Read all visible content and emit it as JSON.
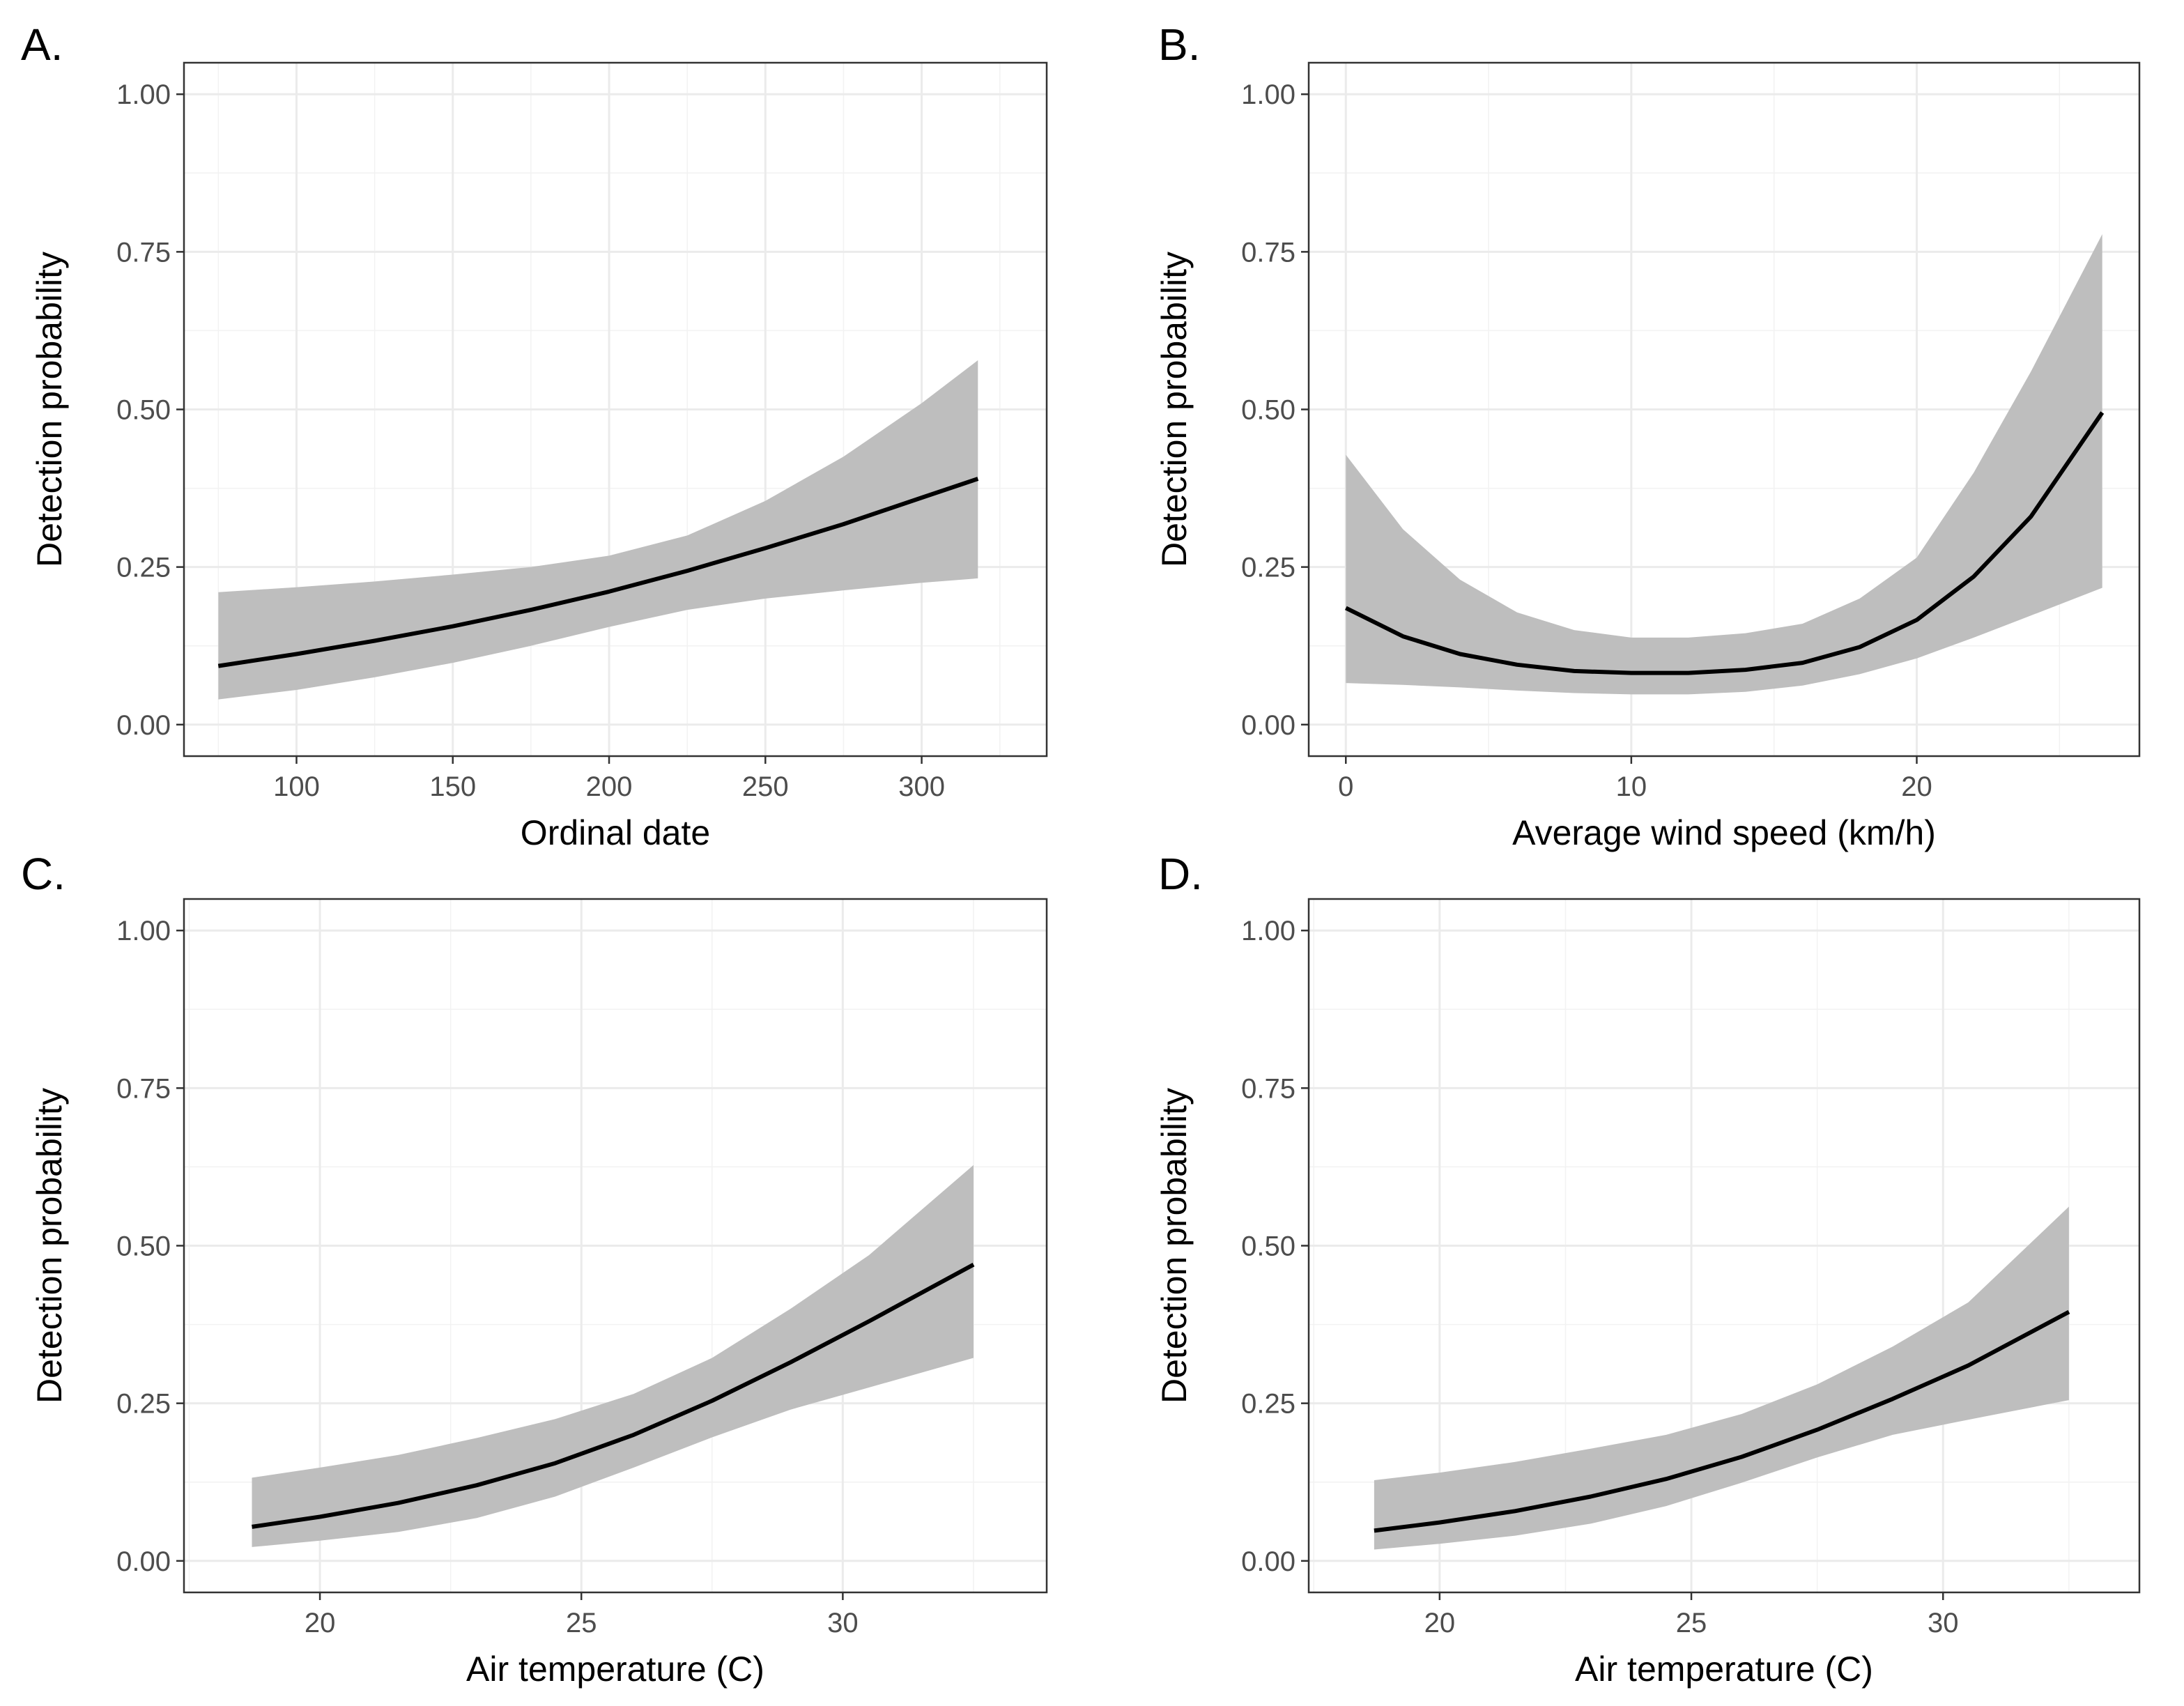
{
  "colors": {
    "ribbon": "#bebebe",
    "line": "#000000",
    "grid": "#ebebeb",
    "border": "#333333",
    "tick_text": "#4d4d4d"
  },
  "chart_data": [
    {
      "panel": "A.",
      "type": "line",
      "xlabel": "Ordinal date",
      "ylabel": "Detection probability",
      "xlim": [
        64,
        340
      ],
      "ylim": [
        -0.05,
        1.05
      ],
      "x_major_ticks": [
        100,
        150,
        200,
        250,
        300
      ],
      "x_tick_labels": [
        "100",
        "150",
        "200",
        "250",
        "300"
      ],
      "y_major_ticks": [
        0,
        0.25,
        0.5,
        0.75,
        1.0
      ],
      "y_tick_labels": [
        "0.00",
        "0.25",
        "0.50",
        "0.75",
        "1.00"
      ],
      "x": [
        75,
        100,
        125,
        150,
        175,
        200,
        225,
        250,
        275,
        300,
        318
      ],
      "y": [
        0.093,
        0.112,
        0.133,
        0.156,
        0.182,
        0.211,
        0.244,
        0.28,
        0.318,
        0.36,
        0.39
      ],
      "lower": [
        0.04,
        0.055,
        0.075,
        0.098,
        0.125,
        0.155,
        0.182,
        0.2,
        0.213,
        0.225,
        0.232
      ],
      "upper": [
        0.21,
        0.218,
        0.227,
        0.238,
        0.25,
        0.268,
        0.3,
        0.355,
        0.425,
        0.51,
        0.578
      ]
    },
    {
      "panel": "B.",
      "type": "line",
      "xlabel": "Average wind speed (km/h)",
      "ylabel": "Detection probability",
      "xlim": [
        -1.3,
        27.8
      ],
      "ylim": [
        -0.05,
        1.05
      ],
      "x_major_ticks": [
        0,
        10,
        20
      ],
      "x_tick_labels": [
        "0",
        "10",
        "20"
      ],
      "y_major_ticks": [
        0,
        0.25,
        0.5,
        0.75,
        1.0
      ],
      "y_tick_labels": [
        "0.00",
        "0.25",
        "0.50",
        "0.75",
        "1.00"
      ],
      "x": [
        0,
        2,
        4,
        6,
        8,
        10,
        12,
        14,
        16,
        18,
        20,
        22,
        24,
        26.5
      ],
      "y": [
        0.185,
        0.14,
        0.112,
        0.095,
        0.085,
        0.082,
        0.082,
        0.087,
        0.098,
        0.123,
        0.166,
        0.235,
        0.33,
        0.495
      ],
      "lower": [
        0.066,
        0.063,
        0.059,
        0.054,
        0.05,
        0.048,
        0.048,
        0.052,
        0.062,
        0.08,
        0.105,
        0.138,
        0.173,
        0.217
      ],
      "upper": [
        0.428,
        0.31,
        0.23,
        0.178,
        0.15,
        0.138,
        0.138,
        0.145,
        0.16,
        0.2,
        0.265,
        0.4,
        0.56,
        0.778
      ]
    },
    {
      "panel": "C.",
      "type": "line",
      "xlabel": "Air temperature (C)",
      "ylabel": "Detection probability",
      "xlim": [
        17.4,
        33.9
      ],
      "ylim": [
        -0.05,
        1.05
      ],
      "x_major_ticks": [
        20,
        25,
        30
      ],
      "x_tick_labels": [
        "20",
        "25",
        "30"
      ],
      "y_major_ticks": [
        0,
        0.25,
        0.5,
        0.75,
        1.0
      ],
      "y_tick_labels": [
        "0.00",
        "0.25",
        "0.50",
        "0.75",
        "1.00"
      ],
      "x": [
        18.7,
        20,
        21.5,
        23,
        24.5,
        26,
        27.5,
        29,
        30.5,
        32.5
      ],
      "y": [
        0.054,
        0.07,
        0.092,
        0.12,
        0.155,
        0.2,
        0.254,
        0.315,
        0.38,
        0.47
      ],
      "lower": [
        0.022,
        0.032,
        0.046,
        0.068,
        0.102,
        0.148,
        0.196,
        0.24,
        0.275,
        0.322
      ],
      "upper": [
        0.132,
        0.148,
        0.168,
        0.195,
        0.225,
        0.265,
        0.322,
        0.4,
        0.485,
        0.628
      ]
    },
    {
      "panel": "D.",
      "type": "line",
      "xlabel": "Air temperature (C)",
      "ylabel": "Detection probability",
      "xlim": [
        17.4,
        33.9
      ],
      "ylim": [
        -0.05,
        1.05
      ],
      "x_major_ticks": [
        20,
        25,
        30
      ],
      "x_tick_labels": [
        "20",
        "25",
        "30"
      ],
      "y_major_ticks": [
        0,
        0.25,
        0.5,
        0.75,
        1.0
      ],
      "y_tick_labels": [
        "0.00",
        "0.25",
        "0.50",
        "0.75",
        "1.00"
      ],
      "x": [
        18.7,
        20,
        21.5,
        23,
        24.5,
        26,
        27.5,
        29,
        30.5,
        32.5
      ],
      "y": [
        0.048,
        0.061,
        0.079,
        0.102,
        0.13,
        0.165,
        0.208,
        0.257,
        0.31,
        0.395
      ],
      "lower": [
        0.018,
        0.027,
        0.04,
        0.059,
        0.087,
        0.124,
        0.164,
        0.2,
        0.224,
        0.255
      ],
      "upper": [
        0.128,
        0.14,
        0.157,
        0.178,
        0.2,
        0.233,
        0.28,
        0.34,
        0.41,
        0.562
      ]
    }
  ]
}
